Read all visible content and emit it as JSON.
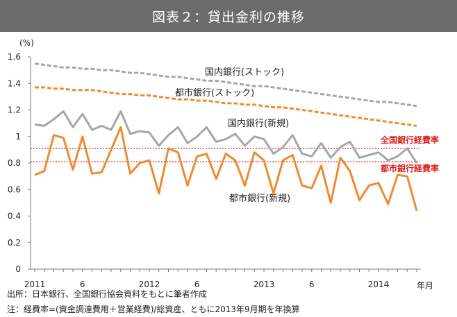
{
  "header": {
    "title": "図表２：貸出金利の推移"
  },
  "chart_data": {
    "type": "line",
    "y_unit": "(%)",
    "ylim": [
      0,
      1.6
    ],
    "yticks": [
      "0",
      "0.2",
      "0.4",
      "0.6",
      "0.8",
      "1",
      "1.2",
      "1.4",
      "1.6"
    ],
    "xlabel": "年月",
    "x_labels": [
      {
        "label": "2011",
        "index": 0
      },
      {
        "label": "6",
        "index": 5
      },
      {
        "label": "2012",
        "index": 12
      },
      {
        "label": "6",
        "index": 17
      },
      {
        "label": "2013",
        "index": 24
      },
      {
        "label": "6",
        "index": 29
      },
      {
        "label": "2014",
        "index": 36
      }
    ],
    "n_points": 41,
    "series": [
      {
        "name": "国内銀行(ストック)",
        "style": "dashed",
        "color": "#a6a6a6",
        "values": [
          1.55,
          1.54,
          1.53,
          1.52,
          1.52,
          1.51,
          1.51,
          1.5,
          1.5,
          1.49,
          1.48,
          1.48,
          1.47,
          1.46,
          1.45,
          1.45,
          1.44,
          1.43,
          1.42,
          1.42,
          1.41,
          1.4,
          1.39,
          1.38,
          1.38,
          1.37,
          1.36,
          1.35,
          1.34,
          1.33,
          1.32,
          1.31,
          1.3,
          1.29,
          1.28,
          1.27,
          1.26,
          1.26,
          1.25,
          1.24,
          1.23
        ]
      },
      {
        "name": "都市銀行(ストック)",
        "style": "dashed",
        "color": "#ee8a30",
        "values": [
          1.37,
          1.37,
          1.36,
          1.36,
          1.35,
          1.35,
          1.35,
          1.34,
          1.33,
          1.32,
          1.32,
          1.31,
          1.31,
          1.3,
          1.29,
          1.28,
          1.28,
          1.27,
          1.27,
          1.26,
          1.25,
          1.25,
          1.24,
          1.24,
          1.23,
          1.22,
          1.22,
          1.21,
          1.2,
          1.19,
          1.18,
          1.17,
          1.16,
          1.15,
          1.14,
          1.13,
          1.12,
          1.11,
          1.1,
          1.09,
          1.08
        ]
      },
      {
        "name": "国内銀行(新規)",
        "style": "solid",
        "color": "#a6a6a6",
        "values": [
          1.09,
          1.08,
          1.13,
          1.19,
          1.07,
          1.17,
          1.05,
          1.08,
          1.05,
          1.19,
          1.02,
          1.04,
          1.03,
          0.93,
          1.01,
          1.07,
          0.95,
          1.0,
          1.07,
          0.96,
          0.98,
          1.02,
          0.93,
          1.0,
          0.98,
          0.87,
          0.92,
          1.01,
          0.87,
          0.85,
          0.95,
          0.84,
          0.92,
          0.96,
          0.84,
          0.86,
          0.88,
          0.82,
          0.85,
          0.91,
          0.8
        ]
      },
      {
        "name": "都市銀行(新規)",
        "style": "solid",
        "color": "#ee8a30",
        "values": [
          0.71,
          0.74,
          1.01,
          0.99,
          0.75,
          1.0,
          0.72,
          0.73,
          0.9,
          1.07,
          0.72,
          0.8,
          0.82,
          0.57,
          0.91,
          0.88,
          0.63,
          0.85,
          0.87,
          0.68,
          0.87,
          0.82,
          0.63,
          0.88,
          0.82,
          0.57,
          0.82,
          0.86,
          0.63,
          0.61,
          0.78,
          0.5,
          0.84,
          0.74,
          0.52,
          0.63,
          0.65,
          0.49,
          0.71,
          0.7,
          0.44
        ]
      }
    ],
    "reference_lines": [
      {
        "name": "全国銀行経費率",
        "value": 0.91,
        "color": "#d9211e"
      },
      {
        "name": "都市銀行経費率",
        "value": 0.81,
        "color": "#d9211e"
      }
    ],
    "annotations": {
      "kokunai_stock": "国内銀行(ストック)",
      "toshi_stock": "都市銀行(ストック)",
      "kokunai_new": "国内銀行(新規)",
      "toshi_new": "都市銀行(新規)"
    }
  },
  "footnotes": {
    "source": "出所：日本銀行、全国銀行協会資料をもとに筆者作成",
    "note": "注：経費率=(資金調達費用＋営業経費)/総資産、ともに2013年9月期を年換算"
  }
}
